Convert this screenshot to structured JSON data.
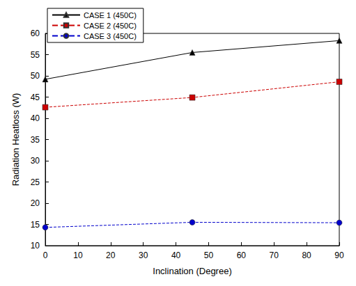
{
  "chart_data": {
    "type": "line",
    "x_label": "Inclination (Degree)",
    "y_label": "Radiation Heatloss (W)",
    "x": [
      0,
      45,
      90
    ],
    "series": [
      {
        "name": "CASE 1 (450C)",
        "color": "#000000",
        "marker": "triangle",
        "line_style": "solid",
        "values": [
          49.2,
          55.5,
          58.3
        ]
      },
      {
        "name": "CASE 2 (450C)",
        "color": "#cc0000",
        "marker": "square",
        "line_style": "dashed",
        "values": [
          42.6,
          44.9,
          48.6
        ]
      },
      {
        "name": "CASE 3 (450C)",
        "color": "#0000cc",
        "marker": "circle",
        "line_style": "dashed",
        "values": [
          14.3,
          15.5,
          15.4
        ]
      }
    ],
    "xlim": [
      0,
      90
    ],
    "xticks": [
      0,
      10,
      20,
      30,
      40,
      50,
      60,
      70,
      80,
      90
    ],
    "ylim": [
      10,
      60
    ],
    "yticks": [
      10,
      15,
      20,
      25,
      30,
      35,
      40,
      45,
      50,
      55,
      60
    ],
    "grid": false,
    "legend": "upper left"
  }
}
